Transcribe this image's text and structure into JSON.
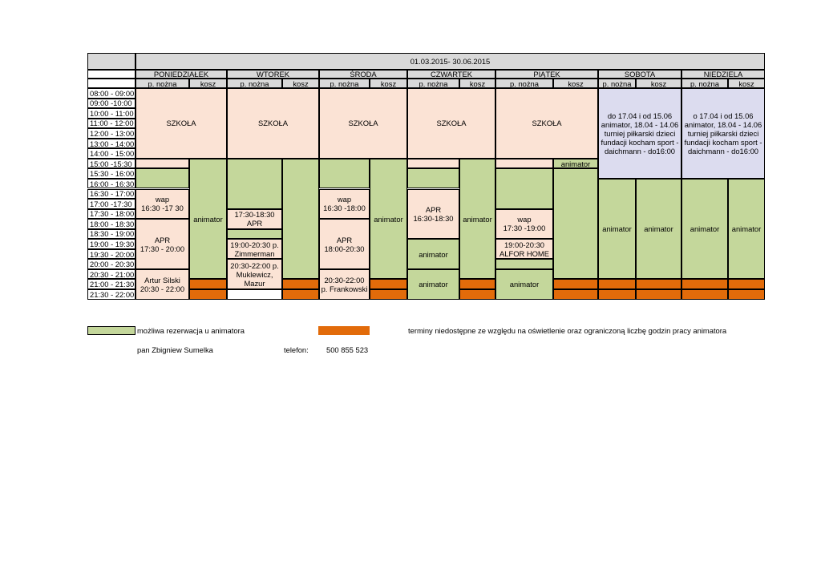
{
  "header": {
    "period": "01.03.2015- 30.06.2015",
    "days": [
      "PONIEDZIAŁEK",
      "WTOREK",
      "ŚRODA",
      "CZWARTEK",
      "PIĄTEK",
      "SOBOTA",
      "NIEDZIELA"
    ],
    "sub_pnozna": "p. nożna",
    "sub_kosz": "kosz"
  },
  "times": [
    "08:00 - 09:00",
    "09:00 -10:00",
    "10:00 - 11:00",
    "11:00 - 12:00",
    "12:00 - 13:00",
    "13:00 - 14:00",
    "14:00 - 15:00",
    "15:00 -15:30",
    "15:30 - 16:00",
    "16:00 - 16:30",
    "16:30 - 17:00",
    "17:00 -17:30",
    "17:30 - 18:00",
    "18:00 - 18:30",
    "18:30 - 19:00",
    "19:00 - 19:30",
    "19:30 - 20:00",
    "20:00 - 20:30",
    "20:30 - 21:00",
    "21:00 - 21:30",
    "21:30 - 22:00"
  ],
  "cells": {
    "szkola": "SZKOŁA",
    "animator": "animator",
    "mon_wap": "wap\n16:30 -17 30",
    "mon_apr": "APR\n17:30 - 20:00",
    "mon_artur": "Artur Silski\n20:30 - 22:00",
    "tue_1730": "17:30-18:30\nAPR",
    "tue_zimmerman": "19:00-20:30 p.\nZimmerman",
    "tue_muklewicz": "20:30-22:00 p.\nMuklewicz,\nMazur",
    "wed_wap": "wap\n16:30 -18:00",
    "wed_apr": "APR\n18:00-20:30",
    "wed_frankowski": "20:30-22:00\np. Frankowski",
    "thu_apr": "APR\n16:30-18:30",
    "fri_wap": "wap\n17:30 -19:00",
    "fri_alfor": "19:00-20:30\nALFOR HOME",
    "sat_note": "do 17.04 i od 15.06\nanimator,  18.04 - 14.06\nturniej piłkarski dzieci\nfundacji kocham sport -\ndaichmann - do16:00",
    "sun_note": "o 17.04 i od 15.06\nanimator,  18.04 - 14.06\nturniej piłkarski dzieci\nfundacji kocham sport -\ndaichmann - do16:00"
  },
  "legend": {
    "green_label": "możliwa rezerwacja u animatora",
    "orange_label": "terminy niedostępne ze względu na oświetlenie oraz  ograniczoną liczbę godzin pracy animatora",
    "contact_name": "pan Zbigniew Sumelka",
    "phone_label": "telefon:",
    "phone_number": "500 855 523"
  },
  "colors": {
    "gray": "#d9d9d9",
    "peach": "#fbe3d5",
    "green": "#c4d79b",
    "orange": "#e26b0a",
    "lavender": "#dcdcef"
  }
}
